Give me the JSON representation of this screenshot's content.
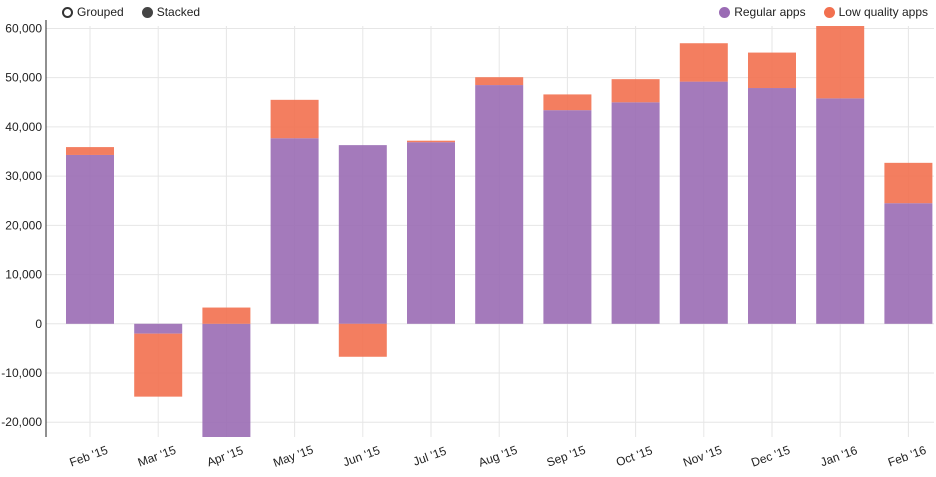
{
  "controls": {
    "grouped_label": "Grouped",
    "stacked_label": "Stacked",
    "mode": "stacked"
  },
  "colors": {
    "regular": "#9a6bb4",
    "low_quality": "#f2704f"
  },
  "chart_data": {
    "type": "bar",
    "stacked": true,
    "categories": [
      "Feb '15",
      "Mar '15",
      "Apr '15",
      "May '15",
      "Jun '15",
      "Jul '15",
      "Aug '15",
      "Sep '15",
      "Oct '15",
      "Nov '15",
      "Dec '15",
      "Jan '16",
      "Feb '16"
    ],
    "series": [
      {
        "name": "Regular apps",
        "values": [
          34300,
          -2000,
          -23000,
          37700,
          36300,
          36900,
          48500,
          43400,
          45000,
          49200,
          47900,
          45800,
          24500
        ]
      },
      {
        "name": "Low quality apps",
        "values": [
          1600,
          -12800,
          3300,
          7800,
          -6700,
          300,
          1600,
          3200,
          4700,
          7800,
          7200,
          14700,
          8200
        ]
      }
    ],
    "yticks": [
      60000,
      50000,
      40000,
      30000,
      20000,
      10000,
      0,
      -10000,
      -20000
    ],
    "ytick_labels": [
      "60,000",
      "50,000",
      "40,000",
      "30,000",
      "20,000",
      "10,000",
      "0",
      "-10,000",
      "-20,000"
    ],
    "ylim": [
      -23000,
      60500
    ],
    "grid": true,
    "legend_position": "top-right"
  }
}
